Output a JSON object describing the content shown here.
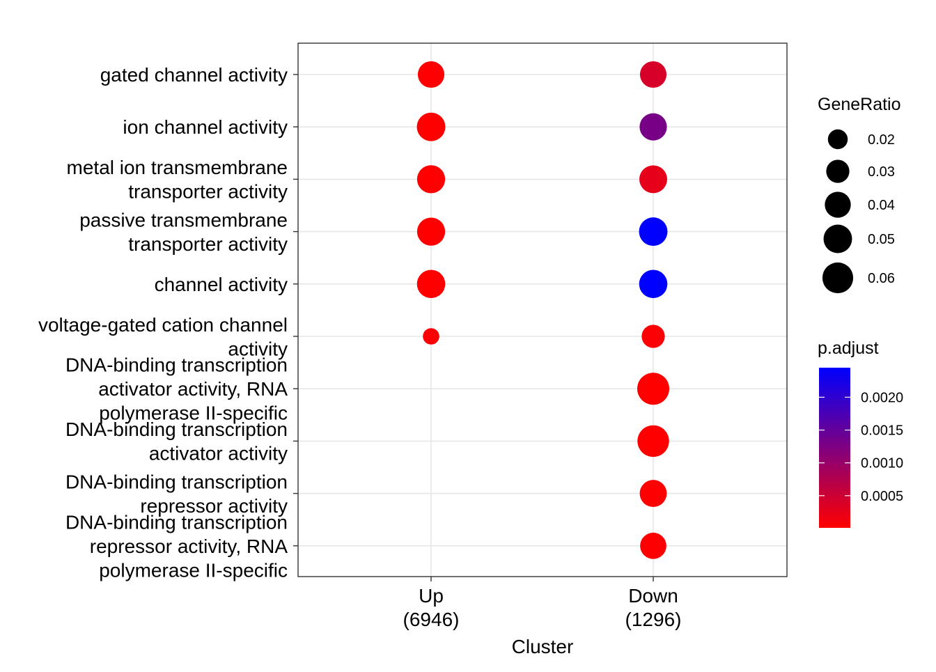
{
  "chart_data": {
    "type": "scatter",
    "xlabel": "Cluster",
    "ylabel": "",
    "x_categories": [
      [
        "Up",
        "(6946)"
      ],
      [
        "Down",
        "(1296)"
      ]
    ],
    "y_categories": [
      [
        "gated channel activity"
      ],
      [
        "ion channel activity"
      ],
      [
        "metal ion transmembrane",
        "transporter activity"
      ],
      [
        "passive transmembrane",
        "transporter activity"
      ],
      [
        "channel activity"
      ],
      [
        "voltage-gated cation channel",
        "activity"
      ],
      [
        "DNA-binding transcription",
        "activator activity, RNA",
        "polymerase II-specific"
      ],
      [
        "DNA-binding transcription",
        "activator activity"
      ],
      [
        "DNA-binding transcription",
        "repressor activity"
      ],
      [
        "DNA-binding transcription",
        "repressor activity, RNA",
        "polymerase II-specific"
      ]
    ],
    "points": [
      {
        "cluster": 0,
        "term": 0,
        "gene_ratio": 0.042,
        "p_adjust": 2e-05
      },
      {
        "cluster": 0,
        "term": 1,
        "gene_ratio": 0.05,
        "p_adjust": 1e-05
      },
      {
        "cluster": 0,
        "term": 2,
        "gene_ratio": 0.048,
        "p_adjust": 1e-05
      },
      {
        "cluster": 0,
        "term": 3,
        "gene_ratio": 0.048,
        "p_adjust": 1e-05
      },
      {
        "cluster": 0,
        "term": 4,
        "gene_ratio": 0.049,
        "p_adjust": 1e-05
      },
      {
        "cluster": 0,
        "term": 5,
        "gene_ratio": 0.012,
        "p_adjust": 5e-05
      },
      {
        "cluster": 1,
        "term": 0,
        "gene_ratio": 0.042,
        "p_adjust": 0.0004
      },
      {
        "cluster": 1,
        "term": 1,
        "gene_ratio": 0.045,
        "p_adjust": 0.0013
      },
      {
        "cluster": 1,
        "term": 2,
        "gene_ratio": 0.047,
        "p_adjust": 0.00025
      },
      {
        "cluster": 1,
        "term": 3,
        "gene_ratio": 0.05,
        "p_adjust": 0.00245
      },
      {
        "cluster": 1,
        "term": 4,
        "gene_ratio": 0.049,
        "p_adjust": 0.00245
      },
      {
        "cluster": 1,
        "term": 5,
        "gene_ratio": 0.03,
        "p_adjust": 5e-05
      },
      {
        "cluster": 1,
        "term": 6,
        "gene_ratio": 0.066,
        "p_adjust": 1e-05
      },
      {
        "cluster": 1,
        "term": 7,
        "gene_ratio": 0.064,
        "p_adjust": 1e-05
      },
      {
        "cluster": 1,
        "term": 8,
        "gene_ratio": 0.044,
        "p_adjust": 3e-05
      },
      {
        "cluster": 1,
        "term": 9,
        "gene_ratio": 0.041,
        "p_adjust": 3e-05
      }
    ],
    "size_legend": {
      "title": "GeneRatio",
      "values": [
        0.02,
        0.03,
        0.04,
        0.05,
        0.06
      ],
      "labels": [
        "0.02",
        "0.03",
        "0.04",
        "0.05",
        "0.06"
      ]
    },
    "color_legend": {
      "title": "p.adjust",
      "range": [
        1e-05,
        0.00245
      ],
      "ticks": [
        0.0005,
        0.001,
        0.0015,
        0.002
      ],
      "tick_labels": [
        "0.0005",
        "0.0010",
        "0.0015",
        "0.0020"
      ],
      "low_color": "#ff0000",
      "high_color": "#0000ff"
    },
    "grid": true,
    "legend_position": "right"
  }
}
